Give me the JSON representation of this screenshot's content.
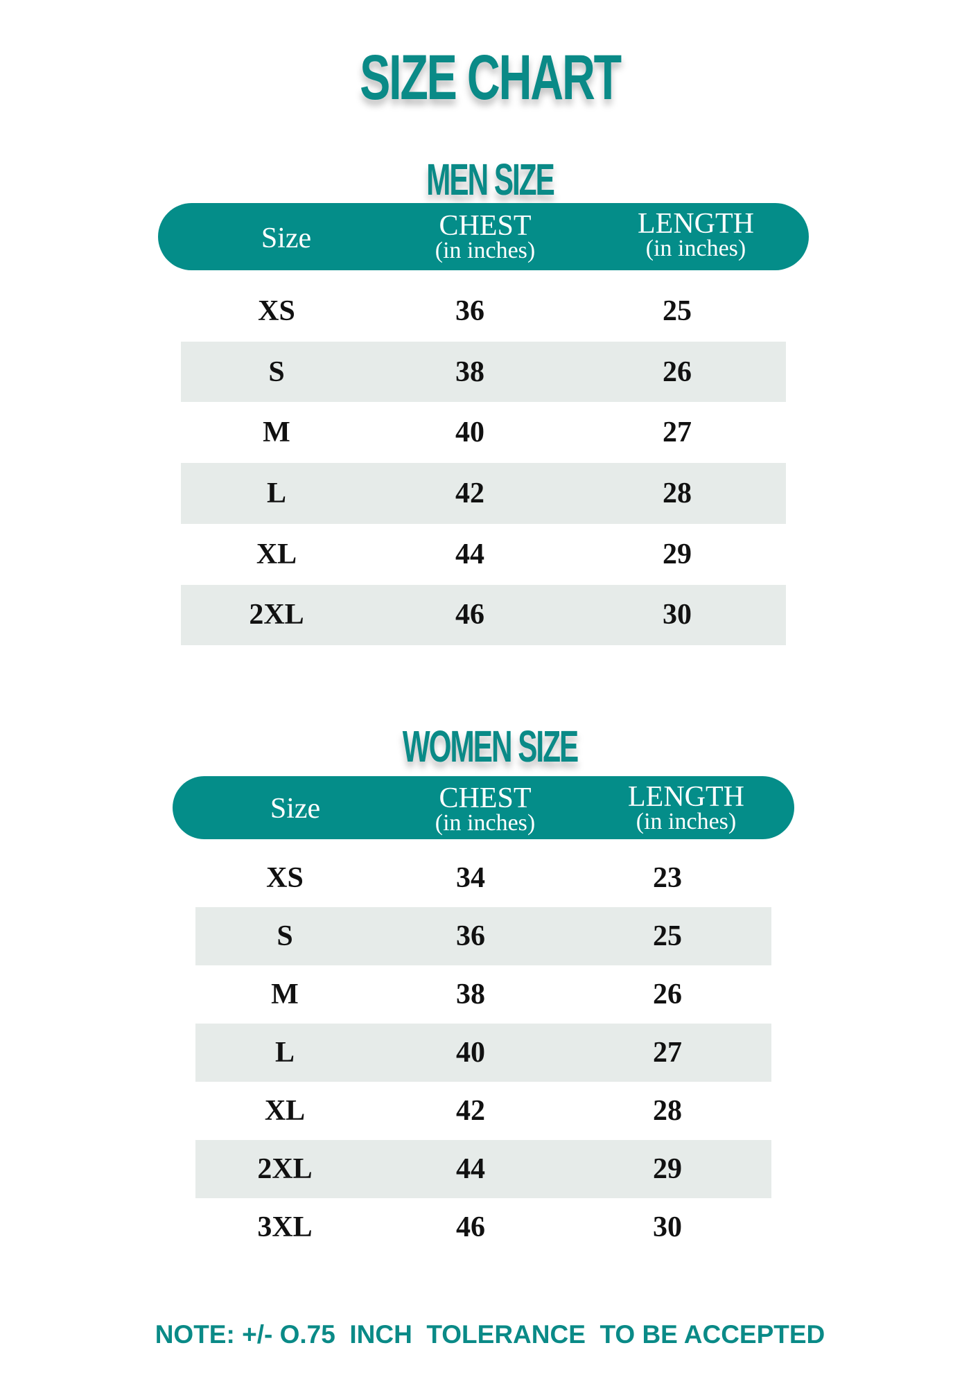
{
  "title": "SIZE CHART",
  "colors": {
    "accent": "#048d89",
    "stripe": "#e6ebe9",
    "text": "#111111"
  },
  "men": {
    "title": "MEN SIZE",
    "headers": [
      {
        "label": "Size",
        "sub": ""
      },
      {
        "label": "CHEST",
        "sub": "(in inches)"
      },
      {
        "label": "LENGTH",
        "sub": "(in inches)"
      }
    ],
    "rows": [
      [
        "XS",
        "36",
        "25"
      ],
      [
        "S",
        "38",
        "26"
      ],
      [
        "M",
        "40",
        "27"
      ],
      [
        "L",
        "42",
        "28"
      ],
      [
        "XL",
        "44",
        "29"
      ],
      [
        "2XL",
        "46",
        "30"
      ]
    ]
  },
  "women": {
    "title": "WOMEN SIZE",
    "headers": [
      {
        "label": "Size",
        "sub": ""
      },
      {
        "label": "CHEST",
        "sub": "(in inches)"
      },
      {
        "label": "LENGTH",
        "sub": "(in inches)"
      }
    ],
    "rows": [
      [
        "XS",
        "34",
        "23"
      ],
      [
        "S",
        "36",
        "25"
      ],
      [
        "M",
        "38",
        "26"
      ],
      [
        "L",
        "40",
        "27"
      ],
      [
        "XL",
        "42",
        "28"
      ],
      [
        "2XL",
        "44",
        "29"
      ],
      [
        "3XL",
        "46",
        "30"
      ]
    ]
  },
  "note": "NOTE: +/- O.75  INCH  TOLERANCE  TO BE ACCEPTED"
}
